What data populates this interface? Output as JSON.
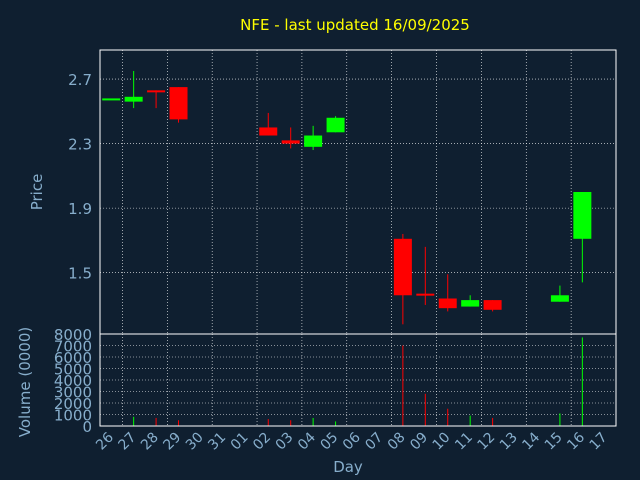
{
  "chart_data": {
    "type": "candlestick",
    "title": "NFE - last updated 16/09/2025",
    "xlabel": "Day",
    "price_panel": {
      "ylabel": "Price",
      "yticks": [
        "2.7",
        "2.3",
        "1.9",
        "1.5"
      ],
      "ylim": [
        1.12,
        2.88
      ]
    },
    "volume_panel": {
      "ylabel": "Volume (0000)",
      "yticks": [
        "8000",
        "7000",
        "6000",
        "5000",
        "4000",
        "3000",
        "2000",
        "1000",
        "0"
      ],
      "ylim": [
        0,
        8000
      ]
    },
    "categories": [
      "26",
      "27",
      "28",
      "29",
      "30",
      "31",
      "01",
      "02",
      "03",
      "04",
      "05",
      "06",
      "07",
      "08",
      "09",
      "10",
      "11",
      "12",
      "13",
      "14",
      "15",
      "16",
      "17"
    ],
    "candles": [
      {
        "day": "26",
        "open": 2.58,
        "high": 2.58,
        "low": 2.58,
        "close": 2.58,
        "volume": 0
      },
      {
        "day": "27",
        "open": 2.56,
        "high": 2.75,
        "low": 2.52,
        "close": 2.59,
        "volume": 800
      },
      {
        "day": "28",
        "open": 2.63,
        "high": 2.63,
        "low": 2.52,
        "close": 2.62,
        "volume": 700
      },
      {
        "day": "29",
        "open": 2.65,
        "high": 2.65,
        "low": 2.43,
        "close": 2.45,
        "volume": 500
      },
      {
        "day": "02",
        "open": 2.4,
        "high": 2.49,
        "low": 2.35,
        "close": 2.35,
        "volume": 600
      },
      {
        "day": "03",
        "open": 2.32,
        "high": 2.4,
        "low": 2.27,
        "close": 2.3,
        "volume": 500
      },
      {
        "day": "04",
        "open": 2.28,
        "high": 2.41,
        "low": 2.26,
        "close": 2.35,
        "volume": 700
      },
      {
        "day": "05",
        "open": 2.37,
        "high": 2.47,
        "low": 2.37,
        "close": 2.46,
        "volume": 400
      },
      {
        "day": "08",
        "open": 1.71,
        "high": 1.74,
        "low": 1.18,
        "close": 1.36,
        "volume": 7000
      },
      {
        "day": "09",
        "open": 1.37,
        "high": 1.66,
        "low": 1.3,
        "close": 1.36,
        "volume": 2800
      },
      {
        "day": "10",
        "open": 1.34,
        "high": 1.49,
        "low": 1.26,
        "close": 1.28,
        "volume": 1500
      },
      {
        "day": "11",
        "open": 1.29,
        "high": 1.36,
        "low": 1.29,
        "close": 1.33,
        "volume": 900
      },
      {
        "day": "12",
        "open": 1.33,
        "high": 1.33,
        "low": 1.26,
        "close": 1.27,
        "volume": 700
      },
      {
        "day": "15",
        "open": 1.32,
        "high": 1.42,
        "low": 1.32,
        "close": 1.36,
        "volume": 1100
      },
      {
        "day": "16",
        "open": 1.71,
        "high": 2.0,
        "low": 1.44,
        "close": 2.0,
        "volume": 7700
      }
    ],
    "colors": {
      "up": "#00ff00",
      "down": "#ff0000",
      "title": "#ffff00",
      "axis_text": "#87aecc",
      "background": "#0f1f30"
    },
    "grid": true
  }
}
